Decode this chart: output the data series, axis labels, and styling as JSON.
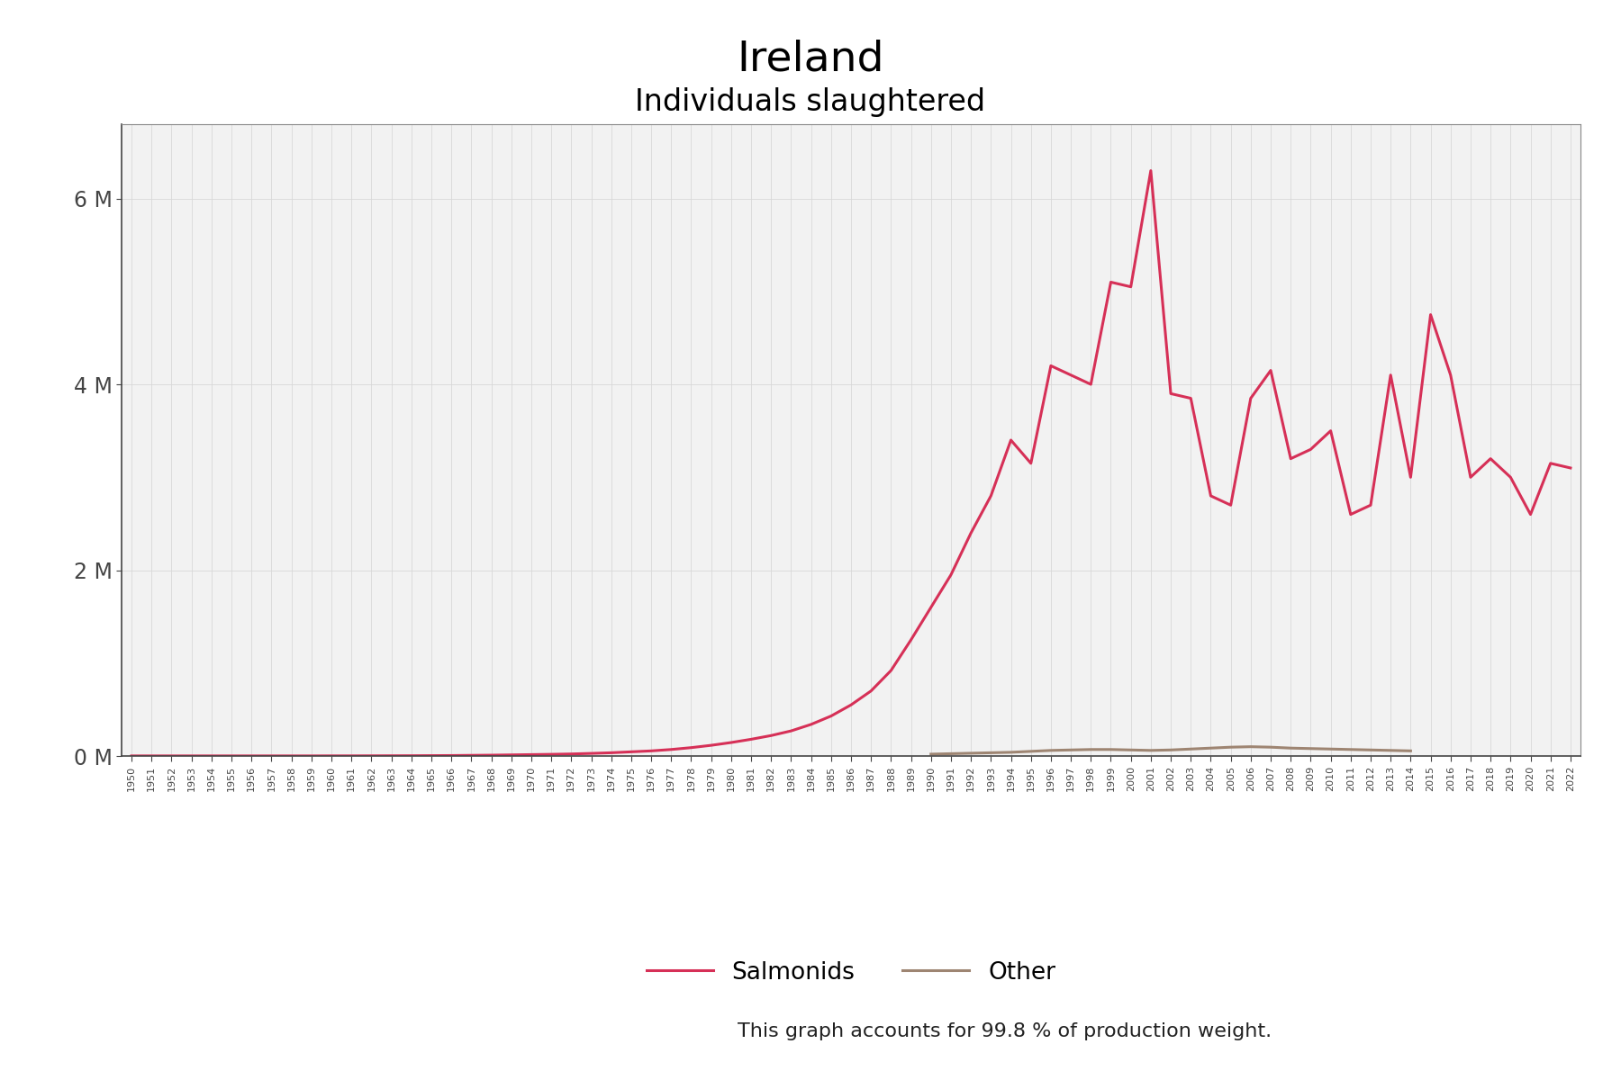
{
  "title": "Ireland",
  "subtitle": "Individuals slaughtered",
  "footnote": "This graph accounts for 99.8 % of production weight.",
  "salmonids_color": "#d63057",
  "other_color": "#9e8572",
  "plot_bg_color": "#f2f2f2",
  "legend_labels": [
    "Salmonids",
    "Other"
  ],
  "years": [
    1950,
    1951,
    1952,
    1953,
    1954,
    1955,
    1956,
    1957,
    1958,
    1959,
    1960,
    1961,
    1962,
    1963,
    1964,
    1965,
    1966,
    1967,
    1968,
    1969,
    1970,
    1971,
    1972,
    1973,
    1974,
    1975,
    1976,
    1977,
    1978,
    1979,
    1980,
    1981,
    1982,
    1983,
    1984,
    1985,
    1986,
    1987,
    1988,
    1989,
    1990,
    1991,
    1992,
    1993,
    1994,
    1995,
    1996,
    1997,
    1998,
    1999,
    2000,
    2001,
    2002,
    2003,
    2004,
    2005,
    2006,
    2007,
    2008,
    2009,
    2010,
    2011,
    2012,
    2013,
    2014,
    2015,
    2016,
    2017,
    2018,
    2019,
    2020,
    2021,
    2022
  ],
  "salmonids": [
    1000,
    1000,
    1000,
    1000,
    1000,
    1000,
    1000,
    1000,
    1000,
    1000,
    1500,
    1500,
    2000,
    2500,
    3000,
    4000,
    5000,
    7000,
    9000,
    12000,
    15000,
    18000,
    22000,
    28000,
    35000,
    45000,
    55000,
    70000,
    90000,
    115000,
    145000,
    180000,
    220000,
    270000,
    340000,
    430000,
    550000,
    700000,
    920000,
    1250000,
    1600000,
    1950000,
    2400000,
    2800000,
    3400000,
    3150000,
    4200000,
    4100000,
    4000000,
    5100000,
    5050000,
    6300000,
    3900000,
    3850000,
    2800000,
    2700000,
    3850000,
    4150000,
    3200000,
    3300000,
    3500000,
    2600000,
    2700000,
    4100000,
    3000000,
    4750000,
    4100000,
    3000000,
    3200000,
    3000000,
    2600000,
    3150000,
    3100000
  ],
  "other_years": [
    1990,
    1991,
    1992,
    1993,
    1994,
    1995,
    1996,
    1997,
    1998,
    1999,
    2000,
    2001,
    2002,
    2003,
    2004,
    2005,
    2006,
    2007,
    2008,
    2009,
    2010,
    2011,
    2012,
    2013,
    2014
  ],
  "other_values": [
    20000,
    25000,
    30000,
    35000,
    40000,
    50000,
    60000,
    65000,
    70000,
    70000,
    65000,
    60000,
    65000,
    75000,
    85000,
    95000,
    100000,
    95000,
    85000,
    80000,
    75000,
    70000,
    65000,
    60000,
    55000
  ],
  "ylim": [
    0,
    6800000
  ],
  "yticks": [
    0,
    2000000,
    4000000,
    6000000
  ],
  "ytick_labels": [
    "0 M",
    "2 M",
    "4 M",
    "6 M"
  ]
}
